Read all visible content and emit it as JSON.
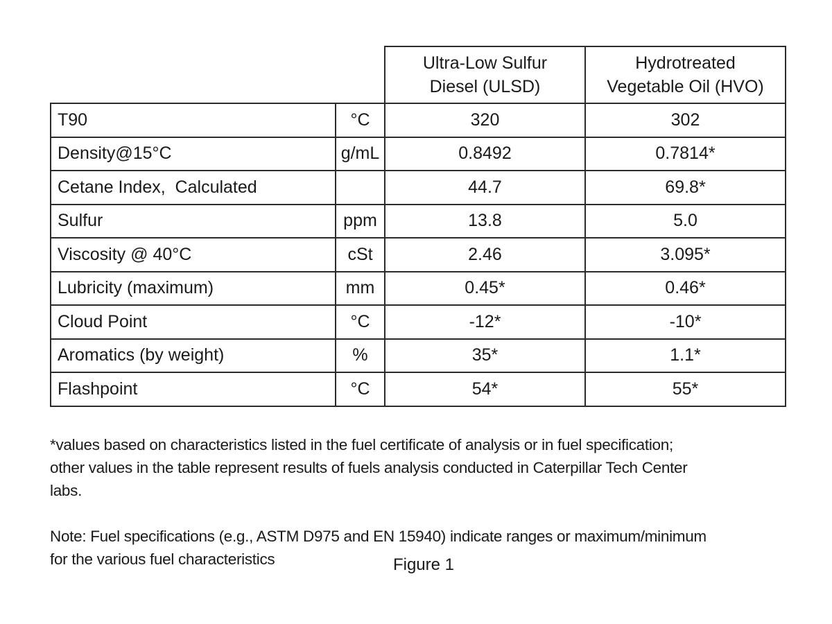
{
  "page": {
    "background_color": "#ffffff",
    "text_color": "#1a1a1a",
    "border_color": "#2b2b2b"
  },
  "table": {
    "column_headers": [
      {
        "id": "ulsd",
        "label": "Ultra-Low Sulfur\nDiesel (ULSD)"
      },
      {
        "id": "hvo",
        "label": "Hydrotreated\nVegetable Oil (HVO)"
      }
    ],
    "rows": [
      {
        "label": "T90",
        "unit": "°C",
        "ulsd": "320",
        "hvo": "302"
      },
      {
        "label": "Density@15°C",
        "unit": "g/mL",
        "ulsd": "0.8492",
        "hvo": "0.7814*"
      },
      {
        "label": "Cetane Index,  Calculated",
        "unit": "",
        "ulsd": "44.7",
        "hvo": "69.8*"
      },
      {
        "label": "Sulfur",
        "unit": "ppm",
        "ulsd": "13.8",
        "hvo": "5.0"
      },
      {
        "label": "Viscosity @ 40°C",
        "unit": "cSt",
        "ulsd": "2.46",
        "hvo": "3.095*"
      },
      {
        "label": "Lubricity (maximum)",
        "unit": "mm",
        "ulsd": "0.45*",
        "hvo": "0.46*"
      },
      {
        "label": "Cloud Point",
        "unit": "°C",
        "ulsd": "-12*",
        "hvo": "-10*"
      },
      {
        "label": "Aromatics (by weight)",
        "unit": "%",
        "ulsd": "35*",
        "hvo": "1.1*"
      },
      {
        "label": "Flashpoint",
        "unit": "°C",
        "ulsd": "54*",
        "hvo": "55*"
      }
    ]
  },
  "footnotes": {
    "asterisk_note": "*values based on characteristics listed in the fuel certificate of analysis or in fuel specification;\nother values in the table represent results of fuels analysis conducted in Caterpillar Tech Center\nlabs.",
    "spec_note": "Note: Fuel specifications (e.g., ASTM D975 and EN 15940) indicate ranges or maximum/minimum\nfor the various fuel characteristics"
  },
  "caption": "Figure 1"
}
